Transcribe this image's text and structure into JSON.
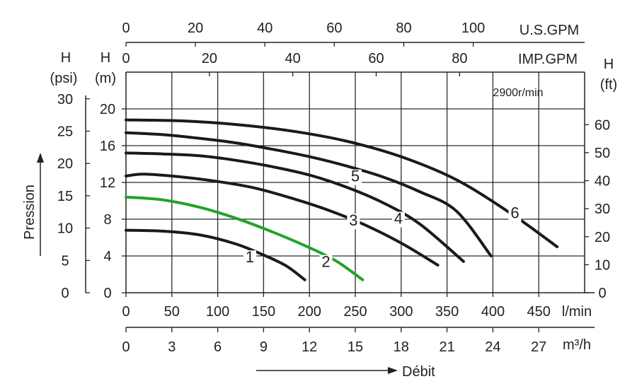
{
  "chart_data": {
    "type": "line",
    "speed_label": "2900r/min",
    "grid": true,
    "x_primary": {
      "unit_label": "l/min",
      "range": [
        0,
        500
      ],
      "ticks": [
        0,
        50,
        100,
        150,
        200,
        250,
        300,
        350,
        400,
        450
      ]
    },
    "x_m3h": {
      "unit_label": "m³/h",
      "range": [
        0,
        30
      ],
      "ticks": [
        0,
        3,
        6,
        9,
        12,
        15,
        18,
        21,
        24,
        27
      ]
    },
    "x_us_gpm": {
      "unit_label": "U.S.GPM",
      "ticks": [
        0,
        20,
        40,
        60,
        80,
        100
      ]
    },
    "x_imp_gpm": {
      "unit_label": "IMP.GPM",
      "ticks": [
        0,
        20,
        40,
        60,
        80
      ]
    },
    "y_m": {
      "label_top": "H",
      "label_bottom": "(m)",
      "range": [
        0,
        24
      ],
      "ticks": [
        0,
        4,
        8,
        12,
        16,
        20
      ]
    },
    "y_psi": {
      "label_top": "H",
      "label_bottom": "(psi)",
      "ticks": [
        0,
        5,
        10,
        15,
        20,
        25,
        30
      ]
    },
    "y_ft": {
      "label_top": "H",
      "label_bottom": "(ft)",
      "ticks": [
        0,
        10,
        20,
        30,
        40,
        50,
        60
      ]
    },
    "axis_titles": {
      "y_left": "Pression",
      "x_bottom": "Débit"
    },
    "series": [
      {
        "name": "1",
        "color": "#1a1a1a",
        "label_at": [
          135,
          3.3
        ],
        "points": [
          [
            0,
            6.8
          ],
          [
            40,
            6.7
          ],
          [
            80,
            6.3
          ],
          [
            120,
            5.3
          ],
          [
            150,
            4.1
          ],
          [
            175,
            2.9
          ],
          [
            195,
            1.4
          ]
        ]
      },
      {
        "name": "2",
        "color": "#22a32a",
        "label_at": [
          218,
          2.8
        ],
        "points": [
          [
            0,
            10.4
          ],
          [
            40,
            10.1
          ],
          [
            80,
            9.3
          ],
          [
            120,
            8.1
          ],
          [
            160,
            6.6
          ],
          [
            200,
            4.9
          ],
          [
            230,
            3.4
          ],
          [
            258,
            1.4
          ]
        ]
      },
      {
        "name": "3",
        "color": "#1a1a1a",
        "label_at": [
          248,
          7.3
        ],
        "points": [
          [
            0,
            12.7
          ],
          [
            20,
            12.9
          ],
          [
            60,
            12.6
          ],
          [
            100,
            12.1
          ],
          [
            140,
            11.4
          ],
          [
            180,
            10.3
          ],
          [
            220,
            9.0
          ],
          [
            260,
            7.4
          ],
          [
            300,
            5.4
          ],
          [
            340,
            3.0
          ]
        ]
      },
      {
        "name": "4",
        "color": "#1a1a1a",
        "label_at": [
          297,
          7.5
        ],
        "points": [
          [
            0,
            15.2
          ],
          [
            40,
            15.1
          ],
          [
            80,
            14.9
          ],
          [
            120,
            14.4
          ],
          [
            160,
            13.7
          ],
          [
            200,
            12.8
          ],
          [
            240,
            11.5
          ],
          [
            280,
            9.8
          ],
          [
            320,
            7.5
          ],
          [
            368,
            3.4
          ]
        ]
      },
      {
        "name": "5",
        "color": "#1a1a1a",
        "label_at": [
          250,
          12.1
        ],
        "points": [
          [
            0,
            17.4
          ],
          [
            40,
            17.2
          ],
          [
            80,
            16.8
          ],
          [
            120,
            16.3
          ],
          [
            160,
            15.6
          ],
          [
            200,
            14.8
          ],
          [
            240,
            13.8
          ],
          [
            280,
            12.6
          ],
          [
            320,
            11.0
          ],
          [
            360,
            8.9
          ],
          [
            398,
            4.0
          ]
        ]
      },
      {
        "name": "6",
        "color": "#1a1a1a",
        "label_at": [
          424,
          8.1
        ],
        "points": [
          [
            0,
            18.8
          ],
          [
            60,
            18.7
          ],
          [
            120,
            18.3
          ],
          [
            180,
            17.6
          ],
          [
            240,
            16.5
          ],
          [
            300,
            14.8
          ],
          [
            360,
            12.3
          ],
          [
            420,
            8.6
          ],
          [
            470,
            5.0
          ]
        ]
      }
    ]
  }
}
